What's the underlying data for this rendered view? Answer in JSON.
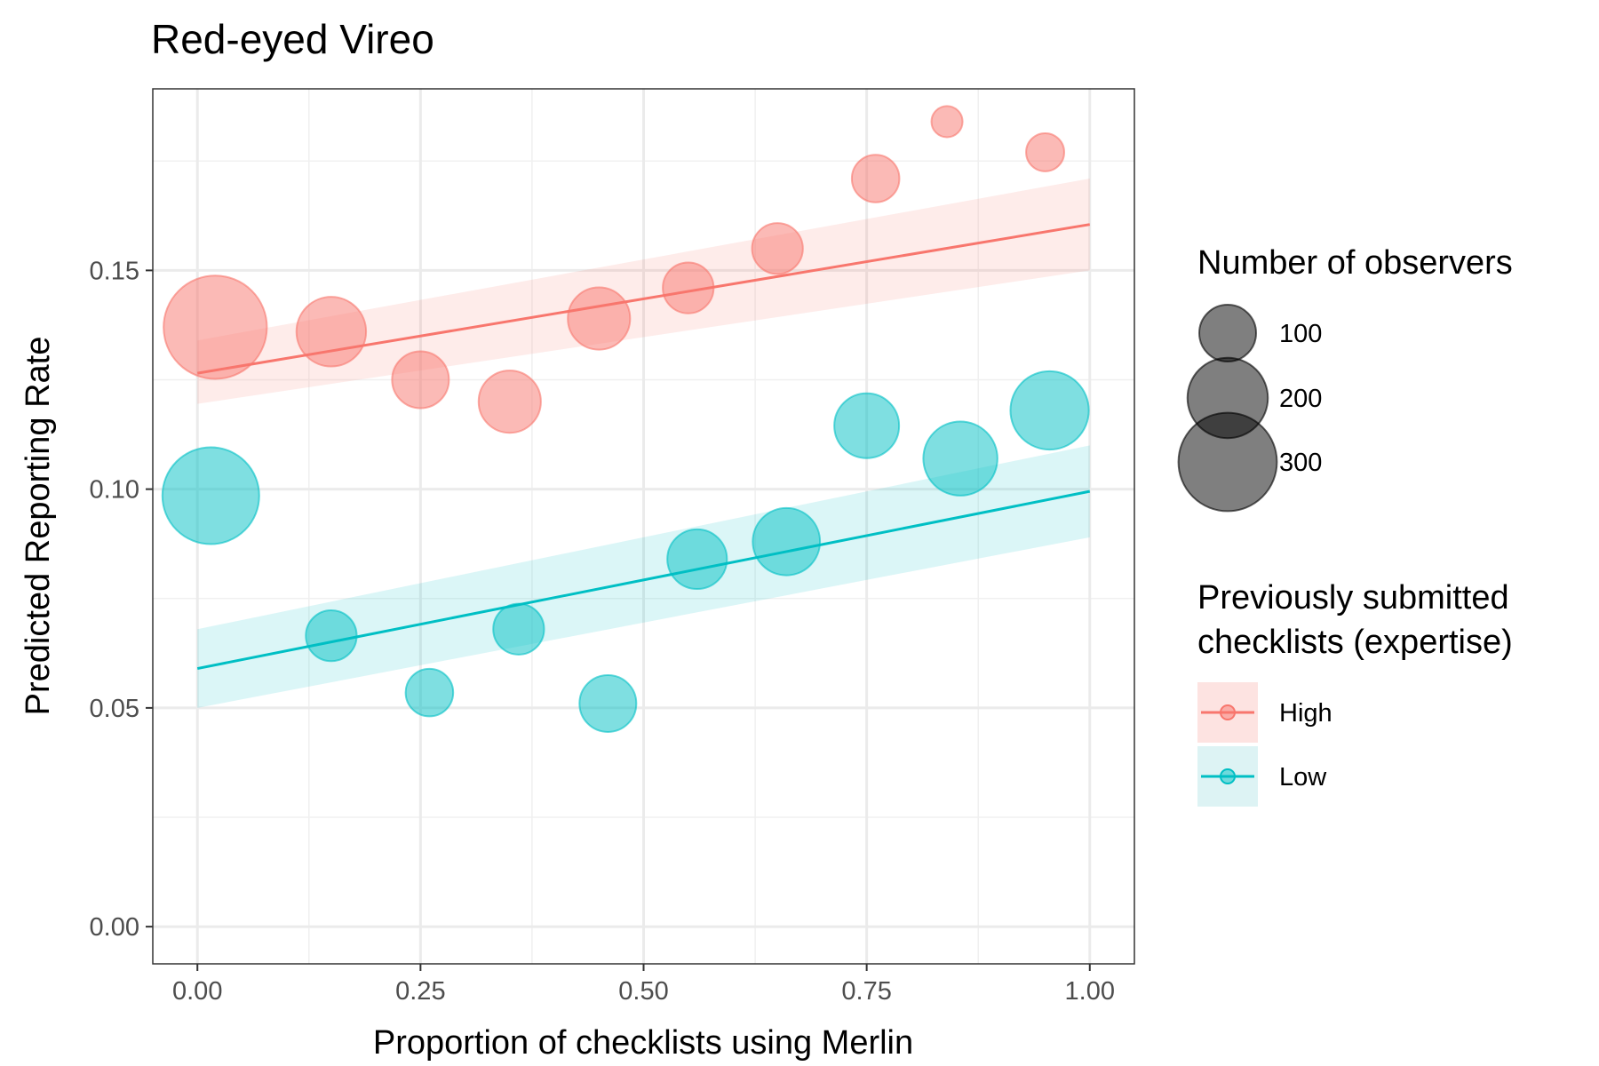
{
  "chart_data": {
    "type": "scatter",
    "title": "Red-eyed Vireo",
    "xlabel": "Proportion of checklists using Merlin",
    "ylabel": "Predicted Reporting Rate",
    "xlim": [
      -0.05,
      1.05
    ],
    "ylim": [
      -0.0085,
      0.1915
    ],
    "x_ticks": [
      "0.00",
      "0.25",
      "0.50",
      "0.75",
      "1.00"
    ],
    "y_ticks": [
      "0.00",
      "0.05",
      "0.10",
      "0.15"
    ],
    "grid": true,
    "legend_position": "right",
    "size_legend": {
      "title": "Number of observers",
      "entries": [
        {
          "label": "100",
          "value": 100
        },
        {
          "label": "200",
          "value": 200
        },
        {
          "label": "300",
          "value": 300
        }
      ]
    },
    "color_legend": {
      "title": [
        "Previously submitted",
        "checklists (expertise)"
      ]
    },
    "series": [
      {
        "name": "High",
        "color": "#F8766D",
        "fill": "#FDE3E1",
        "points": [
          {
            "x": 0.02,
            "y": 0.137,
            "n": 330
          },
          {
            "x": 0.15,
            "y": 0.136,
            "n": 150
          },
          {
            "x": 0.25,
            "y": 0.125,
            "n": 100
          },
          {
            "x": 0.35,
            "y": 0.12,
            "n": 120
          },
          {
            "x": 0.45,
            "y": 0.139,
            "n": 120
          },
          {
            "x": 0.55,
            "y": 0.146,
            "n": 80
          },
          {
            "x": 0.65,
            "y": 0.155,
            "n": 80
          },
          {
            "x": 0.76,
            "y": 0.171,
            "n": 70
          },
          {
            "x": 0.84,
            "y": 0.184,
            "n": 30
          },
          {
            "x": 0.95,
            "y": 0.177,
            "n": 45
          }
        ],
        "fit": {
          "x": [
            0.0,
            1.0
          ],
          "y": [
            0.1265,
            0.1605
          ]
        },
        "band": {
          "x": [
            0.0,
            1.0
          ],
          "lower": [
            0.1195,
            0.15
          ],
          "upper": [
            0.134,
            0.171
          ]
        }
      },
      {
        "name": "Low",
        "color": "#00BFC4",
        "fill": "#DDF3F4",
        "points": [
          {
            "x": 0.015,
            "y": 0.0985,
            "n": 290
          },
          {
            "x": 0.15,
            "y": 0.0665,
            "n": 80
          },
          {
            "x": 0.26,
            "y": 0.0535,
            "n": 70
          },
          {
            "x": 0.36,
            "y": 0.068,
            "n": 80
          },
          {
            "x": 0.46,
            "y": 0.051,
            "n": 100
          },
          {
            "x": 0.56,
            "y": 0.084,
            "n": 110
          },
          {
            "x": 0.66,
            "y": 0.088,
            "n": 140
          },
          {
            "x": 0.75,
            "y": 0.1145,
            "n": 130
          },
          {
            "x": 0.855,
            "y": 0.107,
            "n": 170
          },
          {
            "x": 0.955,
            "y": 0.118,
            "n": 190
          }
        ],
        "fit": {
          "x": [
            0.0,
            1.0
          ],
          "y": [
            0.059,
            0.0995
          ]
        },
        "band": {
          "x": [
            0.0,
            1.0
          ],
          "lower": [
            0.05,
            0.089
          ],
          "upper": [
            0.068,
            0.11
          ]
        }
      }
    ]
  }
}
